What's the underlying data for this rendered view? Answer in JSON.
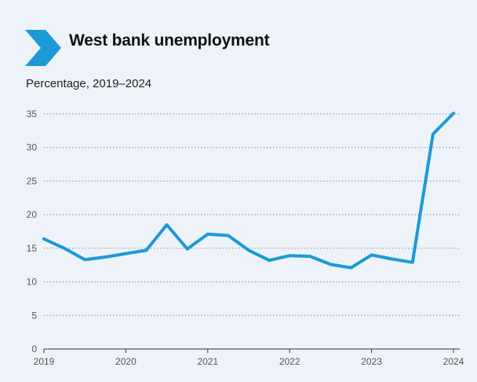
{
  "header": {
    "title": "West bank unemployment",
    "subtitle": "Percentage, 2019–2024",
    "icon": "chevron-right-icon"
  },
  "colors": {
    "line": "#1b9ad6",
    "icon": "#1b9ad6",
    "background": "#eef3fa"
  },
  "chart_data": {
    "type": "line",
    "title": "West bank unemployment",
    "subtitle": "Percentage, 2019–2024",
    "xlabel": "",
    "ylabel": "",
    "xlim": [
      2019,
      2024
    ],
    "ylim": [
      0,
      35
    ],
    "y_ticks": [
      0,
      5,
      10,
      15,
      20,
      25,
      30,
      35
    ],
    "x_ticks": [
      2019,
      2020,
      2021,
      2022,
      2023,
      2024
    ],
    "x_tick_labels": [
      "2019",
      "2020",
      "2021",
      "2022",
      "2023",
      "2024"
    ],
    "grid": "horizontal dotted",
    "legend": "none",
    "series": [
      {
        "x": [
          2019.0,
          2019.25,
          2019.5,
          2019.75,
          2020.0,
          2020.25,
          2020.5,
          2020.75,
          2021.0,
          2021.25,
          2021.5,
          2021.75,
          2022.0,
          2022.25,
          2022.5,
          2022.75,
          2023.0,
          2023.25,
          2023.5,
          2023.75,
          2024.0
        ],
        "values": [
          16.4,
          15.0,
          13.3,
          13.7,
          14.2,
          14.7,
          18.5,
          14.9,
          17.1,
          16.9,
          14.7,
          13.2,
          13.9,
          13.8,
          12.6,
          12.1,
          14.0,
          13.4,
          12.9,
          32.0,
          35.1
        ]
      }
    ]
  }
}
